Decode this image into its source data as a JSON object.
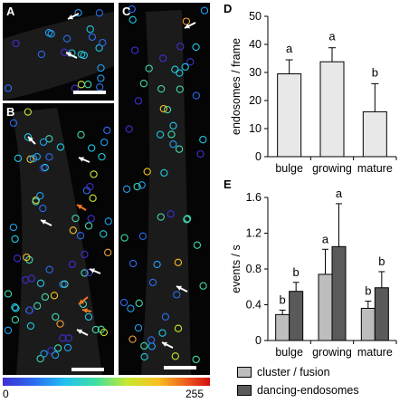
{
  "panels": {
    "A": {
      "label": "A"
    },
    "B": {
      "label": "B"
    },
    "C": {
      "label": "C"
    },
    "D": {
      "label": "D"
    },
    "E": {
      "label": "E"
    }
  },
  "colorbar": {
    "min_label": "0",
    "max_label": "255"
  },
  "colors": {
    "bar_light": "#e8e8e8",
    "series_cluster": "#bdbdbd",
    "series_dancing": "#5a5a5a",
    "arrow_white": "#ffffff",
    "arrow_orange": "#f07a22"
  },
  "chart_data": [
    {
      "id": "D",
      "type": "bar",
      "categories": [
        "bulge",
        "growing",
        "mature"
      ],
      "values": [
        29.5,
        33.8,
        16
      ],
      "errors": [
        5,
        5,
        10
      ],
      "significance": [
        "a",
        "a",
        "b"
      ],
      "ylabel": "endosomes / frame",
      "xlabel": "",
      "ylim": [
        0,
        50
      ],
      "yticks": [
        0,
        10,
        20,
        30,
        40,
        50
      ],
      "grid": false
    },
    {
      "id": "E",
      "type": "bar",
      "categories": [
        "bulge",
        "growing",
        "mature"
      ],
      "series": [
        {
          "name": "cluster / fusion",
          "values": [
            0.29,
            0.74,
            0.36
          ],
          "errors": [
            0.05,
            0.28,
            0.08
          ],
          "significance": [
            "b",
            "a",
            "b"
          ]
        },
        {
          "name": "dancing-endosomes",
          "values": [
            0.55,
            1.05,
            0.59
          ],
          "errors": [
            0.1,
            0.48,
            0.18
          ],
          "significance": [
            "b",
            "a",
            "b"
          ]
        }
      ],
      "ylabel": "events / s",
      "xlabel": "",
      "ylim": [
        0,
        1.6
      ],
      "yticks": [
        "0",
        "0.4",
        "0.8",
        "1.2",
        "1.6"
      ],
      "legend_position": "bottom",
      "grid": false
    }
  ]
}
